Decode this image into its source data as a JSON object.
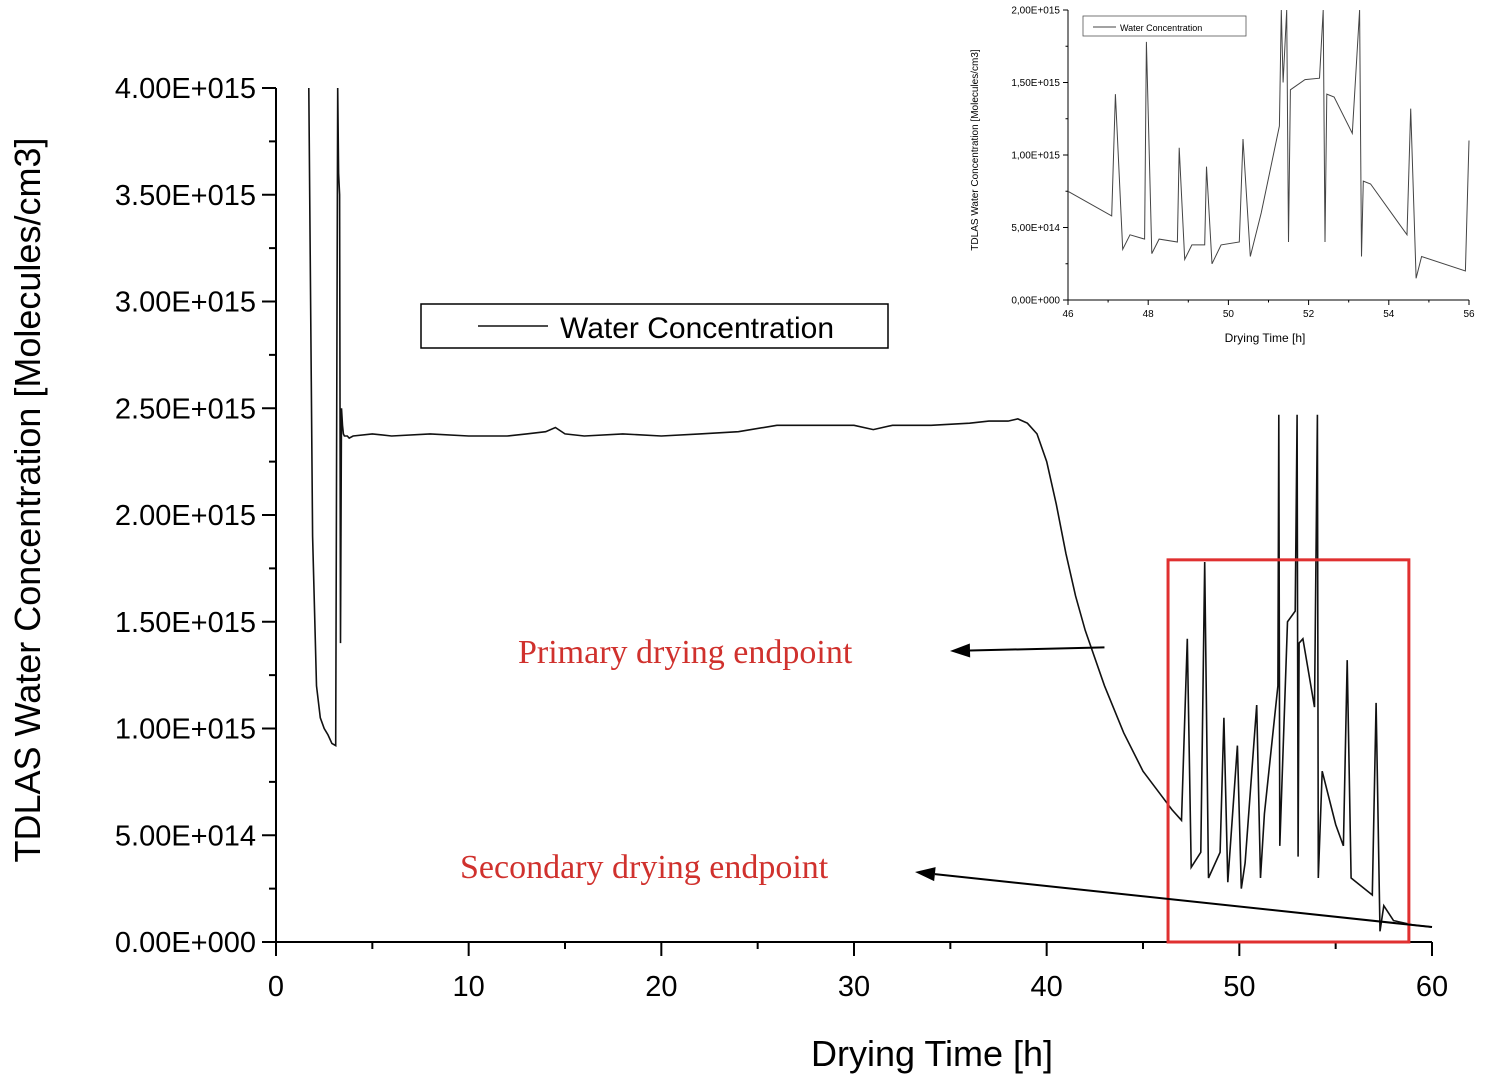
{
  "chart_data": [
    {
      "type": "line",
      "role": "main",
      "xlabel": "Drying Time [h]",
      "ylabel": "TDLAS Water Concentration [Molecules/cm3]",
      "xlim": [
        0,
        60
      ],
      "ylim": [
        0,
        4000000000000000.0
      ],
      "x_ticks": [
        "0",
        "10",
        "20",
        "30",
        "40",
        "50",
        "60"
      ],
      "y_ticks": [
        "0.00E+000",
        "5.00E+014",
        "1.00E+015",
        "1.50E+015",
        "2.00E+015",
        "2.50E+015",
        "3.00E+015",
        "3.50E+015",
        "4.00E+015"
      ],
      "grid": false,
      "legend": {
        "entries": [
          "Water Concentration"
        ],
        "placement": "upper-center"
      },
      "annotations": [
        {
          "text": "Primary drying endpoint",
          "color": "#d0312d",
          "arrow_to": [
            43,
            1380000000000000.0
          ]
        },
        {
          "text": "Secondary drying endpoint",
          "color": "#d0312d",
          "arrow_to": [
            60,
            70000000000000.0
          ]
        }
      ],
      "highlight_box": {
        "x": [
          46.3,
          58.8
        ],
        "y": [
          0,
          1790000000000000.0
        ],
        "color": "#e03030"
      },
      "series": [
        {
          "name": "Water Concentration",
          "x": [
            1.7,
            1.9,
            2.1,
            2.3,
            2.5,
            2.7,
            2.9,
            3.1,
            3.2,
            3.25,
            3.3,
            3.35,
            3.4,
            3.45,
            3.5,
            3.55,
            3.6,
            3.7,
            3.8,
            4,
            5,
            6,
            8,
            10,
            12,
            13,
            14,
            14.5,
            15,
            16,
            18,
            20,
            22,
            24,
            26,
            28,
            30,
            31,
            32,
            34,
            36,
            37,
            38,
            38.5,
            39,
            39.5,
            40,
            40.5,
            41,
            41.5,
            42,
            43,
            44,
            45,
            46,
            46.5,
            47,
            47.3,
            47.5,
            48,
            48.2,
            48.4,
            49,
            49.2,
            49.4,
            49.9,
            50.1,
            50.3,
            50.9,
            51.1,
            51.3,
            52,
            52.05,
            52.1,
            52.5,
            52.9,
            53,
            53.05,
            53.1,
            53.3,
            53.9,
            54.05,
            54.1,
            54.3,
            55,
            55.4,
            55.6,
            55.8,
            56.9,
            57.1,
            57.3,
            57.5,
            58,
            59,
            60
          ],
          "y": [
            4000000000000000.0,
            1900000000000000.0,
            1200000000000000.0,
            1050000000000000.0,
            1000000000000000.0,
            970000000000000.0,
            930000000000000.0,
            920000000000000.0,
            4000000000000000.0,
            3600000000000000.0,
            3500000000000000.0,
            1400000000000000.0,
            2500000000000000.0,
            2420000000000000.0,
            2380000000000000.0,
            2370000000000000.0,
            2370000000000000.0,
            2370000000000000.0,
            2360000000000000.0,
            2370000000000000.0,
            2380000000000000.0,
            2370000000000000.0,
            2380000000000000.0,
            2370000000000000.0,
            2370000000000000.0,
            2380000000000000.0,
            2390000000000000.0,
            2410000000000000.0,
            2380000000000000.0,
            2370000000000000.0,
            2380000000000000.0,
            2370000000000000.0,
            2380000000000000.0,
            2390000000000000.0,
            2420000000000000.0,
            2420000000000000.0,
            2420000000000000.0,
            2400000000000000.0,
            2420000000000000.0,
            2420000000000000.0,
            2430000000000000.0,
            2440000000000000.0,
            2440000000000000.0,
            2450000000000000.0,
            2430000000000000.0,
            2380000000000000.0,
            2250000000000000.0,
            2050000000000000.0,
            1820000000000000.0,
            1620000000000000.0,
            1460000000000000.0,
            1200000000000000.0,
            980000000000000.0,
            800000000000000.0,
            680000000000000.0,
            620000000000000.0,
            570000000000000.0,
            1420000000000000.0,
            350000000000000.0,
            420000000000000.0,
            1780000000000000.0,
            300000000000000.0,
            420000000000000.0,
            1050000000000000.0,
            280000000000000.0,
            920000000000000.0,
            250000000000000.0,
            370000000000000.0,
            1110000000000000.0,
            300000000000000.0,
            600000000000000.0,
            1200000000000000.0,
            2470000000000000.0,
            450000000000000.0,
            1500000000000000.0,
            1550000000000000.0,
            2470000000000000.0,
            400000000000000.0,
            1400000000000000.0,
            1420000000000000.0,
            1100000000000000.0,
            2470000000000000.0,
            300000000000000.0,
            800000000000000.0,
            550000000000000.0,
            450000000000000.0,
            1320000000000000.0,
            300000000000000.0,
            220000000000000.0,
            1120000000000000.0,
            50000000000000.0,
            170000000000000.0,
            100000000000000.0,
            80000000000000.0,
            70000000000000.0
          ]
        }
      ]
    },
    {
      "type": "line",
      "role": "inset",
      "xlabel": "Drying Time [h]",
      "ylabel": "TDLAS Water Concentration [Molecules/cm3]",
      "xlim": [
        46,
        57
      ],
      "ylim": [
        0,
        2000000000000000.0
      ],
      "x_ticks": [
        "46",
        "48",
        "50",
        "52",
        "54",
        "56"
      ],
      "y_ticks": [
        "0,00E+000",
        "5,00E+014",
        "1,00E+015",
        "1,50E+015",
        "2,00E+015"
      ],
      "grid": false,
      "legend": {
        "entries": [
          "Water Concentration"
        ],
        "placement": "top-left"
      },
      "series": [
        {
          "name": "Water Concentration",
          "x": [
            46,
            47.2,
            47.3,
            47.5,
            47.7,
            48.1,
            48.15,
            48.3,
            48.5,
            49.0,
            49.05,
            49.2,
            49.4,
            49.75,
            49.8,
            49.95,
            50.2,
            50.7,
            50.8,
            51.0,
            51.3,
            51.8,
            51.85,
            51.9,
            52.0,
            52.05,
            52.1,
            52.5,
            52.9,
            53.0,
            53.05,
            53.1,
            53.3,
            53.8,
            54.0,
            54.05,
            54.1,
            54.3,
            55.3,
            55.4,
            55.55,
            55.7,
            56.9,
            57.0
          ],
          "y": [
            750000000000000.0,
            580000000000000.0,
            1420000000000000.0,
            350000000000000.0,
            450000000000000.0,
            420000000000000.0,
            1780000000000000.0,
            320000000000000.0,
            420000000000000.0,
            400000000000000.0,
            1050000000000000.0,
            280000000000000.0,
            380000000000000.0,
            380000000000000.0,
            920000000000000.0,
            250000000000000.0,
            380000000000000.0,
            400000000000000.0,
            1110000000000000.0,
            300000000000000.0,
            600000000000000.0,
            1200000000000000.0,
            2000000000000000.0,
            1500000000000000.0,
            2000000000000000.0,
            400000000000000.0,
            1450000000000000.0,
            1520000000000000.0,
            1530000000000000.0,
            2000000000000000.0,
            400000000000000.0,
            1420000000000000.0,
            1400000000000000.0,
            1150000000000000.0,
            2000000000000000.0,
            300000000000000.0,
            820000000000000.0,
            800000000000000.0,
            450000000000000.0,
            1320000000000000.0,
            150000000000000.0,
            300000000000000.0,
            200000000000000.0,
            1100000000000000.0
          ]
        }
      ]
    }
  ]
}
